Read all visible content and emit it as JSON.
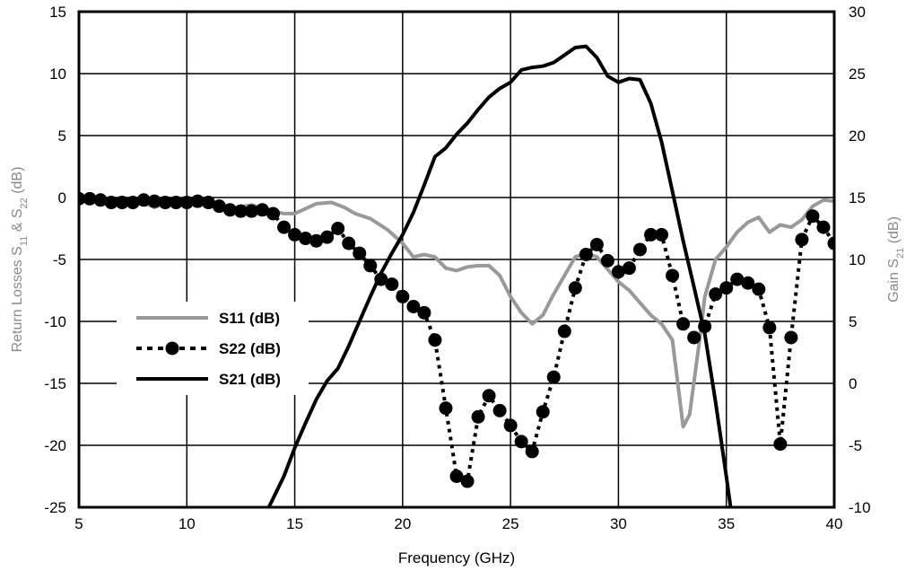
{
  "chart_data": {
    "type": "line",
    "xlabel": "Frequency (GHz)",
    "ylabel_left": {
      "prefix": "Return Losses S",
      "sub1": "11",
      "mid": " & S",
      "sub2": "22",
      "suffix": " (dB)"
    },
    "ylabel_right": {
      "prefix": "Gain S",
      "sub": "21",
      "suffix": " (dB)"
    },
    "xlim": [
      5,
      40
    ],
    "ylim_left": [
      -25,
      15
    ],
    "ylim_right": [
      -10,
      30
    ],
    "x_ticks": [
      "5",
      "10",
      "15",
      "20",
      "25",
      "30",
      "35",
      "40"
    ],
    "y_left_ticks": [
      "-25",
      "-20",
      "-15",
      "-10",
      "-5",
      "0",
      "5",
      "10",
      "15"
    ],
    "y_right_ticks": [
      "-10",
      "-5",
      "0",
      "5",
      "10",
      "15",
      "20",
      "25",
      "30"
    ],
    "grid": true,
    "legend_position": "middle-left",
    "series": [
      {
        "name": "S11 (dB)",
        "axis": "left",
        "color": "#999999",
        "style": "solid",
        "points": [
          [
            5,
            -0.2
          ],
          [
            6,
            -0.2
          ],
          [
            7,
            -0.3
          ],
          [
            8,
            -0.4
          ],
          [
            8.5,
            -0.8
          ],
          [
            9,
            -0.5
          ],
          [
            10,
            -0.5
          ],
          [
            11,
            -0.5
          ],
          [
            12,
            -0.9
          ],
          [
            13,
            -0.6
          ],
          [
            14,
            -1.1
          ],
          [
            14.5,
            -1.3
          ],
          [
            15,
            -1.3
          ],
          [
            15.5,
            -0.9
          ],
          [
            16,
            -0.5
          ],
          [
            16.7,
            -0.4
          ],
          [
            17.3,
            -0.8
          ],
          [
            17.8,
            -1.3
          ],
          [
            18.5,
            -1.7
          ],
          [
            19.3,
            -2.6
          ],
          [
            20,
            -3.7
          ],
          [
            20.5,
            -4.8
          ],
          [
            21,
            -4.6
          ],
          [
            21.5,
            -4.8
          ],
          [
            22,
            -5.7
          ],
          [
            22.5,
            -5.9
          ],
          [
            23,
            -5.6
          ],
          [
            23.5,
            -5.5
          ],
          [
            24,
            -5.5
          ],
          [
            24.5,
            -6.3
          ],
          [
            25,
            -8.0
          ],
          [
            25.5,
            -9.3
          ],
          [
            26,
            -10.2
          ],
          [
            26.5,
            -9.5
          ],
          [
            27,
            -7.8
          ],
          [
            27.5,
            -6.3
          ],
          [
            28,
            -4.8
          ],
          [
            28.5,
            -4.5
          ],
          [
            29,
            -4.8
          ],
          [
            29.5,
            -5.8
          ],
          [
            30,
            -6.8
          ],
          [
            30.5,
            -7.5
          ],
          [
            31,
            -8.5
          ],
          [
            31.5,
            -9.5
          ],
          [
            32,
            -10.2
          ],
          [
            32.5,
            -11.5
          ],
          [
            33,
            -18.5
          ],
          [
            33.3,
            -17.5
          ],
          [
            33.8,
            -11.0
          ],
          [
            34,
            -8.0
          ],
          [
            34.5,
            -5.0
          ],
          [
            35,
            -4.0
          ],
          [
            35.5,
            -2.8
          ],
          [
            36,
            -2.0
          ],
          [
            36.5,
            -1.6
          ],
          [
            37,
            -2.8
          ],
          [
            37.5,
            -2.2
          ],
          [
            38,
            -2.4
          ],
          [
            38.5,
            -1.8
          ],
          [
            39,
            -0.7
          ],
          [
            39.5,
            -0.2
          ],
          [
            40,
            -0.3
          ]
        ]
      },
      {
        "name": "S22 (dB)",
        "axis": "left",
        "color": "#000000",
        "style": "dotted-markers",
        "points": [
          [
            5,
            -0.1
          ],
          [
            5.5,
            -0.1
          ],
          [
            6,
            -0.2
          ],
          [
            6.5,
            -0.4
          ],
          [
            7,
            -0.4
          ],
          [
            7.5,
            -0.4
          ],
          [
            8,
            -0.2
          ],
          [
            8.5,
            -0.3
          ],
          [
            9,
            -0.4
          ],
          [
            9.5,
            -0.4
          ],
          [
            10,
            -0.4
          ],
          [
            10.5,
            -0.3
          ],
          [
            11,
            -0.4
          ],
          [
            11.5,
            -0.7
          ],
          [
            12,
            -1.0
          ],
          [
            12.5,
            -1.1
          ],
          [
            13,
            -1.1
          ],
          [
            13.5,
            -1.0
          ],
          [
            14,
            -1.3
          ],
          [
            14.5,
            -2.4
          ],
          [
            15,
            -3.0
          ],
          [
            15.5,
            -3.3
          ],
          [
            16,
            -3.5
          ],
          [
            16.5,
            -3.2
          ],
          [
            17,
            -2.5
          ],
          [
            17.5,
            -3.7
          ],
          [
            18,
            -4.5
          ],
          [
            18.5,
            -5.5
          ],
          [
            19,
            -6.6
          ],
          [
            19.5,
            -7.0
          ],
          [
            20,
            -8.0
          ],
          [
            20.5,
            -8.8
          ],
          [
            21,
            -9.3
          ],
          [
            21.5,
            -11.5
          ],
          [
            22,
            -17.0
          ],
          [
            22.5,
            -22.5
          ],
          [
            23,
            -22.9
          ],
          [
            23.5,
            -17.7
          ],
          [
            24,
            -16.0
          ],
          [
            24.5,
            -17.2
          ],
          [
            25,
            -18.4
          ],
          [
            25.5,
            -19.7
          ],
          [
            26,
            -20.5
          ],
          [
            26.5,
            -17.3
          ],
          [
            27,
            -14.5
          ],
          [
            27.5,
            -10.8
          ],
          [
            28,
            -7.3
          ],
          [
            28.5,
            -4.6
          ],
          [
            29,
            -3.8
          ],
          [
            29.5,
            -5.1
          ],
          [
            30,
            -6.0
          ],
          [
            30.5,
            -5.7
          ],
          [
            31,
            -4.2
          ],
          [
            31.5,
            -3.0
          ],
          [
            32,
            -3.0
          ],
          [
            32.5,
            -6.3
          ],
          [
            33,
            -10.2
          ],
          [
            33.5,
            -11.3
          ],
          [
            34,
            -10.4
          ],
          [
            34.5,
            -7.8
          ],
          [
            35,
            -7.3
          ],
          [
            35.5,
            -6.6
          ],
          [
            36,
            -6.9
          ],
          [
            36.5,
            -7.4
          ],
          [
            37,
            -10.5
          ],
          [
            37.5,
            -19.9
          ],
          [
            38,
            -11.3
          ],
          [
            38.5,
            -3.4
          ],
          [
            39,
            -1.5
          ],
          [
            39.5,
            -2.4
          ],
          [
            40,
            -3.7
          ]
        ]
      },
      {
        "name": "S21 (dB)",
        "axis": "right",
        "color": "#000000",
        "style": "solid",
        "points": [
          [
            13.8,
            -10
          ],
          [
            14.5,
            -7.5
          ],
          [
            15,
            -5.2
          ],
          [
            15.5,
            -3.2
          ],
          [
            16,
            -1.3
          ],
          [
            16.5,
            0.2
          ],
          [
            17,
            1.2
          ],
          [
            17.5,
            3.0
          ],
          [
            18,
            5.0
          ],
          [
            18.5,
            7.0
          ],
          [
            19,
            8.9
          ],
          [
            19.5,
            10.5
          ],
          [
            20,
            12.0
          ],
          [
            20.5,
            13.8
          ],
          [
            21,
            16.0
          ],
          [
            21.5,
            18.3
          ],
          [
            22,
            19.0
          ],
          [
            22.5,
            20.1
          ],
          [
            23,
            21.0
          ],
          [
            23.5,
            22.1
          ],
          [
            24,
            23.1
          ],
          [
            24.5,
            23.8
          ],
          [
            25,
            24.3
          ],
          [
            25.5,
            25.3
          ],
          [
            26,
            25.5
          ],
          [
            26.5,
            25.6
          ],
          [
            27,
            25.9
          ],
          [
            27.5,
            26.5
          ],
          [
            28,
            27.1
          ],
          [
            28.5,
            27.2
          ],
          [
            29,
            26.3
          ],
          [
            29.5,
            24.8
          ],
          [
            30,
            24.3
          ],
          [
            30.5,
            24.6
          ],
          [
            31,
            24.5
          ],
          [
            31.5,
            22.6
          ],
          [
            32,
            19.5
          ],
          [
            32.5,
            15.5
          ],
          [
            33,
            11.5
          ],
          [
            33.5,
            7.8
          ],
          [
            34,
            4.0
          ],
          [
            34.5,
            -1.5
          ],
          [
            35,
            -7.5
          ],
          [
            35.2,
            -10
          ]
        ]
      }
    ]
  }
}
